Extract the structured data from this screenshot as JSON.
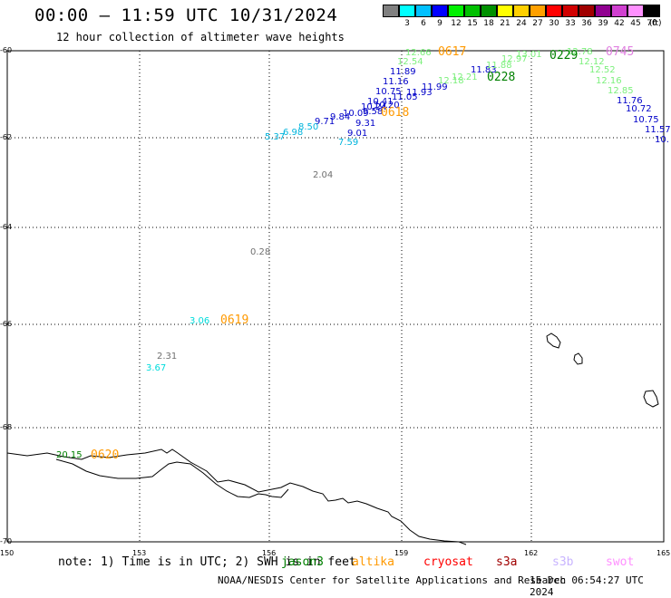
{
  "header": {
    "title": "00:00 – 11:59 UTC 10/31/2024",
    "subtitle": "12 hour collection of altimeter wave heights"
  },
  "legend": {
    "unit": "(ft)",
    "swatches": [
      {
        "label": "",
        "color": "#808080"
      },
      {
        "label": "3",
        "color": "#00ffff"
      },
      {
        "label": "6",
        "color": "#00c0ff"
      },
      {
        "label": "9",
        "color": "#0000ff"
      },
      {
        "label": "12",
        "color": "#00f000"
      },
      {
        "label": "15",
        "color": "#00c000"
      },
      {
        "label": "18",
        "color": "#009000"
      },
      {
        "label": "21",
        "color": "#ffff00"
      },
      {
        "label": "24",
        "color": "#ffd000"
      },
      {
        "label": "27",
        "color": "#ffa000"
      },
      {
        "label": "30",
        "color": "#ff0000"
      },
      {
        "label": "33",
        "color": "#d00000"
      },
      {
        "label": "36",
        "color": "#a00000"
      },
      {
        "label": "39",
        "color": "#900090"
      },
      {
        "label": "42",
        "color": "#d040d0"
      },
      {
        "label": "45",
        "color": "#ff90ff"
      },
      {
        "label": "70",
        "color": "#000000"
      }
    ]
  },
  "axes": {
    "y_ticks": [
      "-60",
      "-62",
      "-64",
      "-66",
      "-68",
      "-70"
    ],
    "x_ticks": [
      "150",
      "153",
      "156",
      "159",
      "162",
      "165"
    ]
  },
  "observations": [
    {
      "text": "12.66",
      "color": "#7cf07c"
    },
    {
      "text": "12.54",
      "color": "#7cf07c"
    },
    {
      "text": "11.89",
      "color": "#0000c8"
    },
    {
      "text": "11.16",
      "color": "#0000c8"
    },
    {
      "text": "10.75",
      "color": "#0000c8"
    },
    {
      "text": "11.93",
      "color": "#0000c8"
    },
    {
      "text": "11.99",
      "color": "#0000c8"
    },
    {
      "text": "10.41",
      "color": "#0000c8"
    },
    {
      "text": "11.05",
      "color": "#0000c8"
    },
    {
      "text": "10.24",
      "color": "#0000c8"
    },
    {
      "text": "10.20",
      "color": "#0000c8"
    },
    {
      "text": "10.09",
      "color": "#0000c8"
    },
    {
      "text": "9.58",
      "color": "#0000c8"
    },
    {
      "text": "9.84",
      "color": "#0000c8"
    },
    {
      "text": "9.71",
      "color": "#0000c8"
    },
    {
      "text": "9.31",
      "color": "#0000c8"
    },
    {
      "text": "9.01",
      "color": "#0000c8"
    },
    {
      "text": "7.59",
      "color": "#00b4dc"
    },
    {
      "text": "8.50",
      "color": "#00b4dc"
    },
    {
      "text": "6.98",
      "color": "#00b4dc"
    },
    {
      "text": "5.37",
      "color": "#00b4dc"
    },
    {
      "text": "2.04",
      "color": "#707070"
    },
    {
      "text": "0.28",
      "color": "#707070"
    },
    {
      "text": "3.06",
      "color": "#00dcdc"
    },
    {
      "text": "2.31",
      "color": "#707070"
    },
    {
      "text": "3.67",
      "color": "#00dcdc"
    },
    {
      "text": "20.15",
      "color": "#008000"
    },
    {
      "text": "12.18",
      "color": "#7cf07c"
    },
    {
      "text": "12.21",
      "color": "#7cf07c"
    },
    {
      "text": "11.83",
      "color": "#0000c8"
    },
    {
      "text": "11.88",
      "color": "#7cf07c"
    },
    {
      "text": "12.97",
      "color": "#7cf07c"
    },
    {
      "text": "13.01",
      "color": "#7cf07c"
    },
    {
      "text": "12.78",
      "color": "#7cf07c"
    },
    {
      "text": "12.12",
      "color": "#7cf07c"
    },
    {
      "text": "12.52",
      "color": "#7cf07c"
    },
    {
      "text": "12.16",
      "color": "#7cf07c"
    },
    {
      "text": "12.85",
      "color": "#7cf07c"
    },
    {
      "text": "11.76",
      "color": "#0000c8"
    },
    {
      "text": "10.72",
      "color": "#0000c8"
    },
    {
      "text": "10.75",
      "color": "#0000c8"
    },
    {
      "text": "11.57",
      "color": "#0000c8"
    },
    {
      "text": "10.",
      "color": "#0000c8"
    }
  ],
  "passes": [
    {
      "text": "0617",
      "color": "#ff9900"
    },
    {
      "text": "0618",
      "color": "#ff9900"
    },
    {
      "text": "0619",
      "color": "#ff9900"
    },
    {
      "text": "0620",
      "color": "#ff9900"
    },
    {
      "text": "0228",
      "color": "#008000"
    },
    {
      "text": "0229",
      "color": "#008000"
    },
    {
      "text": "0745",
      "color": "#e080e0"
    }
  ],
  "footer": {
    "note": "note: 1) Time is in UTC; 2) SWH is in feet",
    "satellites": [
      {
        "name": "jason3",
        "color": "#008000"
      },
      {
        "name": "altika",
        "color": "#ff9900"
      },
      {
        "name": "cryosat",
        "color": "#ff0000"
      },
      {
        "name": "s3a",
        "color": "#a00000"
      },
      {
        "name": "s3b",
        "color": "#c8b4ff"
      },
      {
        "name": "swot",
        "color": "#ff90ff"
      }
    ],
    "credit": "NOAA/NESDIS Center for Satellite Applications and Research",
    "timestamp": "15 Dec 06:54:27 UTC 2024"
  }
}
